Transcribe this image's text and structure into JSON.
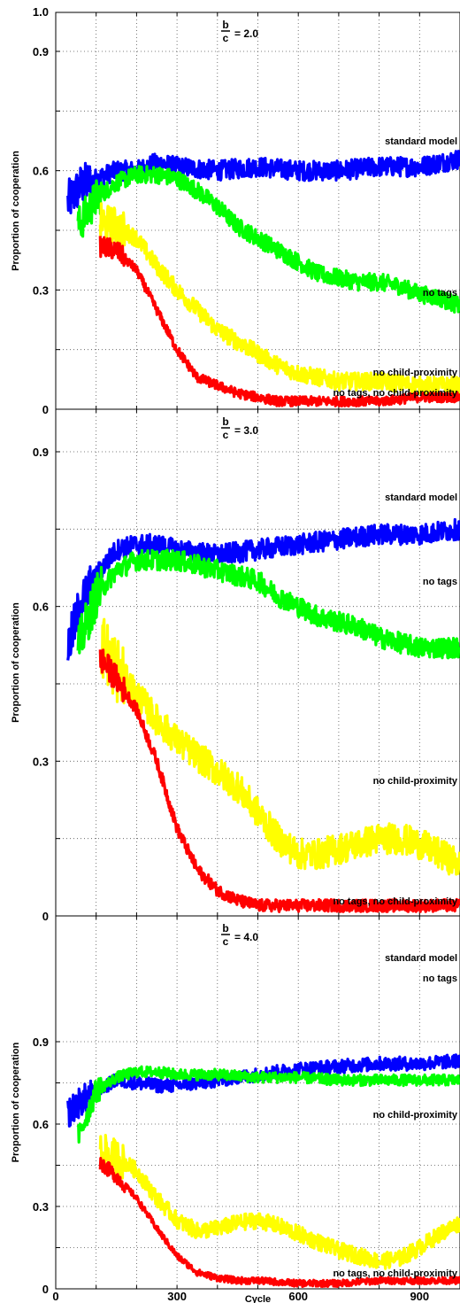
{
  "chart_data": [
    {
      "type": "line",
      "panel_label": {
        "numerator": "b",
        "denominator": "c",
        "value": "= 2.0"
      },
      "ylabel": "Proportion of cooperation",
      "xlabel": "",
      "xlim": [
        0,
        1000
      ],
      "ylim": [
        0,
        1.0
      ],
      "y_ticks": [
        "1.0",
        "0.9",
        "0.6",
        "0.3",
        "0"
      ],
      "x_ticks": [],
      "grid": true,
      "colors": {
        "standard model": "#0000ff",
        "no tags": "#00ff00",
        "no child-proximity": "#ffff00",
        "no tags, no child-proximity": "#ff0000"
      },
      "series": [
        {
          "name": "standard model",
          "label": "standard model",
          "color": "#0000ff",
          "start_x": 30,
          "x": [
            30,
            60,
            100,
            150,
            200,
            250,
            300,
            400,
            500,
            600,
            700,
            800,
            900,
            1000
          ],
          "y": [
            0.52,
            0.56,
            0.58,
            0.6,
            0.6,
            0.62,
            0.61,
            0.6,
            0.61,
            0.6,
            0.6,
            0.61,
            0.61,
            0.63
          ],
          "band": 0.025
        },
        {
          "name": "no tags",
          "label": "no tags",
          "color": "#00ff00",
          "start_x": 55,
          "x": [
            55,
            100,
            150,
            200,
            250,
            300,
            350,
            400,
            450,
            500,
            550,
            600,
            650,
            700,
            750,
            800,
            850,
            900,
            950,
            1000
          ],
          "y": [
            0.46,
            0.53,
            0.57,
            0.59,
            0.59,
            0.58,
            0.55,
            0.51,
            0.46,
            0.43,
            0.4,
            0.37,
            0.34,
            0.33,
            0.32,
            0.32,
            0.31,
            0.29,
            0.28,
            0.26
          ],
          "band": 0.022
        },
        {
          "name": "no child-proximity",
          "label": "no child-proximity",
          "color": "#ffff00",
          "start_x": 110,
          "x": [
            110,
            150,
            200,
            250,
            300,
            350,
            400,
            450,
            500,
            550,
            600,
            650,
            700,
            800,
            900,
            1000
          ],
          "y": [
            0.47,
            0.46,
            0.43,
            0.36,
            0.3,
            0.25,
            0.2,
            0.17,
            0.14,
            0.11,
            0.09,
            0.08,
            0.07,
            0.07,
            0.06,
            0.06
          ],
          "band": 0.022
        },
        {
          "name": "no tags, no child-proximity",
          "label": "no tags, no child-proximity",
          "color": "#ff0000",
          "start_x": 110,
          "x": [
            110,
            150,
            200,
            250,
            300,
            350,
            400,
            450,
            500,
            550,
            600,
            700,
            800,
            900,
            1000
          ],
          "y": [
            0.41,
            0.4,
            0.35,
            0.25,
            0.15,
            0.08,
            0.06,
            0.04,
            0.03,
            0.02,
            0.02,
            0.02,
            0.02,
            0.03,
            0.03
          ],
          "band": 0.012
        }
      ]
    },
    {
      "type": "line",
      "panel_label": {
        "numerator": "b",
        "denominator": "c",
        "value": "= 3.0"
      },
      "ylabel": "Proportion of cooperation",
      "xlabel": "",
      "xlim": [
        0,
        1000
      ],
      "ylim": [
        0,
        1.0
      ],
      "y_ticks": [
        "0.9",
        "0.6",
        "0.3",
        "0"
      ],
      "x_ticks": [],
      "grid": true,
      "colors": {
        "standard model": "#0000ff",
        "no tags": "#00ff00",
        "no child-proximity": "#ffff00",
        "no tags, no child-proximity": "#ff0000"
      },
      "series": [
        {
          "name": "standard model",
          "label": "standard model",
          "color": "#0000ff",
          "start_x": 30,
          "x": [
            30,
            60,
            100,
            150,
            200,
            250,
            300,
            400,
            500,
            600,
            700,
            800,
            900,
            1000
          ],
          "y": [
            0.52,
            0.6,
            0.66,
            0.71,
            0.72,
            0.72,
            0.71,
            0.7,
            0.71,
            0.72,
            0.73,
            0.74,
            0.74,
            0.75
          ],
          "band": 0.02
        },
        {
          "name": "no tags",
          "label": "no tags",
          "color": "#00ff00",
          "start_x": 55,
          "x": [
            55,
            100,
            150,
            200,
            250,
            300,
            400,
            450,
            500,
            550,
            600,
            650,
            700,
            750,
            800,
            850,
            900,
            950,
            1000
          ],
          "y": [
            0.52,
            0.62,
            0.67,
            0.69,
            0.69,
            0.69,
            0.67,
            0.66,
            0.65,
            0.62,
            0.6,
            0.58,
            0.57,
            0.56,
            0.54,
            0.53,
            0.52,
            0.52,
            0.52
          ],
          "band": 0.02
        },
        {
          "name": "no child-proximity",
          "label": "no child-proximity",
          "color": "#ffff00",
          "start_x": 110,
          "x": [
            110,
            150,
            200,
            250,
            300,
            350,
            400,
            450,
            500,
            550,
            600,
            650,
            700,
            750,
            800,
            850,
            900,
            950,
            1000
          ],
          "y": [
            0.53,
            0.48,
            0.43,
            0.38,
            0.34,
            0.31,
            0.28,
            0.25,
            0.2,
            0.15,
            0.12,
            0.12,
            0.13,
            0.14,
            0.15,
            0.15,
            0.14,
            0.12,
            0.1
          ],
          "band": 0.03
        },
        {
          "name": "no tags, no child-proximity",
          "label": "no tags, no child-proximity",
          "color": "#ff0000",
          "start_x": 110,
          "x": [
            110,
            150,
            200,
            250,
            300,
            350,
            400,
            450,
            500,
            600,
            700,
            800,
            900,
            1000
          ],
          "y": [
            0.5,
            0.46,
            0.4,
            0.3,
            0.17,
            0.09,
            0.05,
            0.03,
            0.02,
            0.02,
            0.02,
            0.02,
            0.02,
            0.02
          ],
          "band": 0.012
        }
      ]
    },
    {
      "type": "line",
      "panel_label": {
        "numerator": "b",
        "denominator": "c",
        "value": "= 4.0"
      },
      "ylabel": "Proportion of cooperation",
      "xlabel": "Cycle",
      "xlim": [
        0,
        1000
      ],
      "ylim": [
        0,
        1.0
      ],
      "y_ticks": [
        "0.9",
        "0.6",
        "0.3",
        "0"
      ],
      "x_ticks": [
        "0",
        "300",
        "600",
        "900"
      ],
      "grid": true,
      "colors": {
        "standard model": "#0000ff",
        "no tags": "#00ff00",
        "no child-proximity": "#ffff00",
        "no tags, no child-proximity": "#ff0000"
      },
      "series": [
        {
          "name": "standard model",
          "label": "standard model",
          "color": "#0000ff",
          "start_x": 30,
          "x": [
            30,
            60,
            100,
            150,
            200,
            250,
            300,
            350,
            400,
            500,
            600,
            700,
            800,
            900,
            1000
          ],
          "y": [
            0.64,
            0.68,
            0.72,
            0.76,
            0.75,
            0.74,
            0.74,
            0.75,
            0.76,
            0.78,
            0.8,
            0.81,
            0.82,
            0.82,
            0.83
          ],
          "band": 0.025
        },
        {
          "name": "no tags",
          "label": "no tags",
          "color": "#00ff00",
          "start_x": 55,
          "x": [
            55,
            100,
            150,
            200,
            250,
            300,
            400,
            500,
            600,
            700,
            800,
            900,
            1000
          ],
          "y": [
            0.55,
            0.72,
            0.77,
            0.79,
            0.79,
            0.78,
            0.78,
            0.77,
            0.77,
            0.76,
            0.76,
            0.76,
            0.76
          ],
          "band": 0.02
        },
        {
          "name": "no child-proximity",
          "label": "no child-proximity",
          "color": "#ffff00",
          "start_x": 110,
          "x": [
            110,
            150,
            200,
            250,
            300,
            350,
            400,
            450,
            500,
            550,
            600,
            650,
            700,
            750,
            800,
            850,
            900,
            950,
            1000
          ],
          "y": [
            0.5,
            0.48,
            0.43,
            0.33,
            0.25,
            0.21,
            0.22,
            0.24,
            0.25,
            0.23,
            0.2,
            0.17,
            0.14,
            0.12,
            0.1,
            0.11,
            0.15,
            0.2,
            0.24
          ],
          "band": 0.03
        },
        {
          "name": "no tags, no child-proximity",
          "label": "no tags, no child-proximity",
          "color": "#ff0000",
          "start_x": 110,
          "x": [
            110,
            150,
            200,
            250,
            300,
            350,
            400,
            450,
            500,
            600,
            700,
            800,
            900,
            1000
          ],
          "y": [
            0.46,
            0.41,
            0.33,
            0.22,
            0.12,
            0.06,
            0.04,
            0.03,
            0.03,
            0.02,
            0.02,
            0.03,
            0.03,
            0.03
          ],
          "band": 0.012
        }
      ]
    }
  ]
}
